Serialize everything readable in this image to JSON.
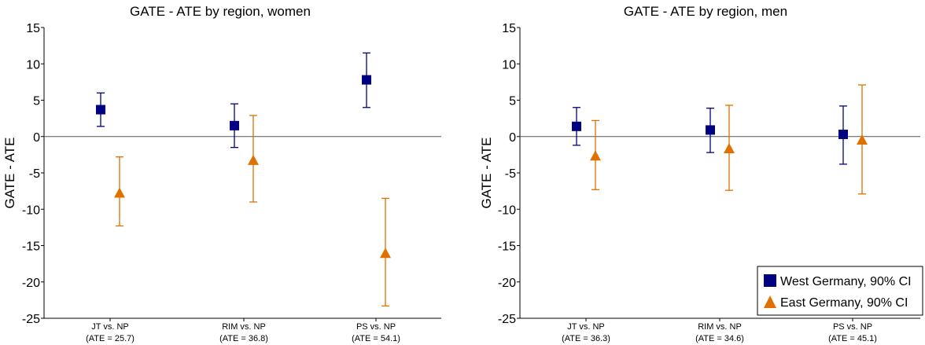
{
  "chart_data": [
    {
      "type": "scatter",
      "title": "GATE - ATE by region, women",
      "ylabel": "GATE - ATE",
      "ylim": [
        -25,
        15
      ],
      "yticks": [
        15,
        10,
        5,
        0,
        -5,
        -10,
        -15,
        -20,
        -25
      ],
      "categories": [
        {
          "label": "JT vs. NP",
          "sublabel": "(ATE = 25.7)"
        },
        {
          "label": "RIM vs. NP",
          "sublabel": "(ATE = 36.8)"
        },
        {
          "label": "PS vs. NP",
          "sublabel": "(ATE = 54.1)"
        }
      ],
      "series": [
        {
          "key": "west",
          "marker": "square",
          "color": "#000080",
          "values": [
            3.7,
            1.5,
            7.8
          ],
          "ci_low": [
            1.4,
            -1.5,
            4.0
          ],
          "ci_high": [
            6.0,
            4.5,
            11.5
          ]
        },
        {
          "key": "east",
          "marker": "triangle",
          "color": "#E07000",
          "values": [
            -7.7,
            -3.2,
            -16.0
          ],
          "ci_low": [
            -12.3,
            -9.0,
            -23.3
          ],
          "ci_high": [
            -2.8,
            2.9,
            -8.5
          ]
        }
      ]
    },
    {
      "type": "scatter",
      "title": "GATE - ATE by region, men",
      "ylabel": "GATE - ATE",
      "ylim": [
        -25,
        15
      ],
      "yticks": [
        15,
        10,
        5,
        0,
        -5,
        -10,
        -15,
        -20,
        -25
      ],
      "categories": [
        {
          "label": "JT vs. NP",
          "sublabel": "(ATE = 36.3)"
        },
        {
          "label": "RIM vs. NP",
          "sublabel": "(ATE = 34.6)"
        },
        {
          "label": "PS vs. NP",
          "sublabel": "(ATE = 45.1)"
        }
      ],
      "series": [
        {
          "key": "west",
          "name": "West Germany, 90% CI",
          "marker": "square",
          "color": "#000080",
          "values": [
            1.4,
            0.9,
            0.3
          ],
          "ci_low": [
            -1.2,
            -2.2,
            -3.8
          ],
          "ci_high": [
            4.0,
            3.9,
            4.2
          ]
        },
        {
          "key": "east",
          "name": "East Germany, 90% CI",
          "marker": "triangle",
          "color": "#E07000",
          "values": [
            -2.6,
            -1.6,
            -0.4
          ],
          "ci_low": [
            -7.3,
            -7.4,
            -7.9
          ],
          "ci_high": [
            2.2,
            4.3,
            7.1
          ]
        }
      ],
      "legend": "bottom-right"
    }
  ]
}
